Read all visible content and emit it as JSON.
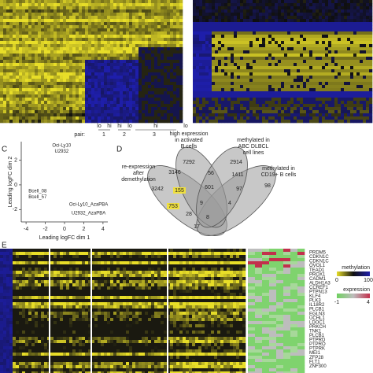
{
  "panel_labels": [
    "C",
    "D",
    "E"
  ],
  "top_left": {
    "conditions": [
      "lo",
      "hi",
      "hi",
      "lo",
      "hi",
      "lo"
    ],
    "pair_label": "pair:",
    "pairs": [
      "1",
      "2",
      "3"
    ]
  },
  "panel_c": {
    "type": "scatter",
    "xlabel": "Leading logFC dim 1",
    "ylabel": "Leading logFC dim 2",
    "xlim": [
      -4.5,
      4.5
    ],
    "ylim": [
      -3,
      3.5
    ],
    "xticks": [
      -4,
      -2,
      0,
      2,
      4
    ],
    "yticks": [
      -2,
      0,
      2
    ],
    "points": [
      {
        "name": "Oci-Ly10",
        "x": -0.3,
        "y": 3.2,
        "color": "#b22222"
      },
      {
        "name": "U2932",
        "x": -0.3,
        "y": 2.7,
        "color": "#b22222"
      },
      {
        "name": "Bcell_08",
        "x": -2.8,
        "y": -0.5,
        "color": "#222222"
      },
      {
        "name": "Bcell_57",
        "x": -2.8,
        "y": -1.0,
        "color": "#222222"
      },
      {
        "name": "Oci-Ly10_AzaPBA",
        "x": 2.5,
        "y": -1.6,
        "color": "#3aa832"
      },
      {
        "name": "U2932_AzaPBA",
        "x": 2.5,
        "y": -2.3,
        "color": "#3aa832"
      }
    ]
  },
  "panel_d": {
    "sets": [
      {
        "lines": [
          "high expression",
          "in activated",
          "B cells"
        ]
      },
      {
        "lines": [
          "methylated in",
          "ABC DLBCL",
          "cell lines"
        ]
      },
      {
        "lines": [
          "methylated in",
          "CD19+ B cells"
        ]
      },
      {
        "lines": [
          "re-expression",
          "after",
          "demethylation"
        ]
      }
    ],
    "counts": [
      "7292",
      "2914",
      "3146",
      "56",
      "1411",
      "3242",
      "155",
      "601",
      "97",
      "98",
      "753",
      "9",
      "4",
      "28",
      "8",
      "17"
    ]
  },
  "panel_e": {
    "genes": [
      "PRDM5",
      "CDKN1C",
      "CDKN1C",
      "OVOL1",
      "TEAD1",
      "PROX1",
      "CADM1",
      "ALDH1A3",
      "CCREF1",
      "PTPN13",
      "KLF4",
      "PLK3",
      "IL18R2",
      "PLCB1",
      "EGLN3",
      "UCHL1",
      "LDOC1",
      "PRKCH",
      "TNK1",
      "PLCB1",
      "PTPRD",
      "PTPRO",
      "PTPRK",
      "MEI1",
      "ZFP28",
      "FLT1",
      "ZNF300"
    ],
    "methylation_legend": {
      "title": "methylation",
      "min": "0",
      "max": "100"
    },
    "expression_legend": {
      "title": "expression",
      "min": "-1",
      "max": "4"
    }
  }
}
